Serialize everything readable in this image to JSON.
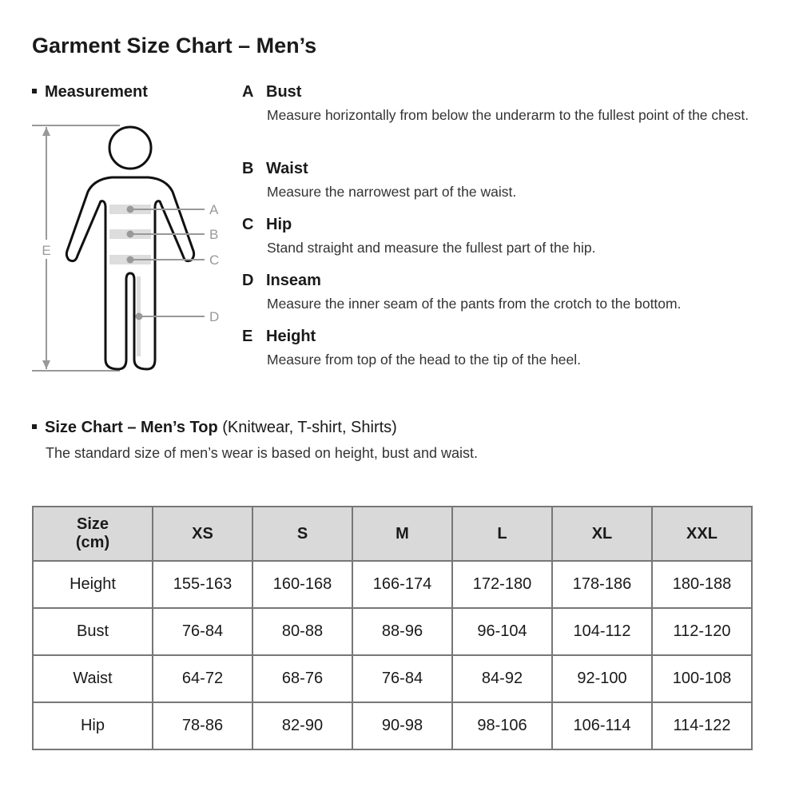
{
  "title": "Garment Size Chart – Men’s",
  "measurement": {
    "heading": "Measurement",
    "figure_labels": [
      "A",
      "B",
      "C",
      "D",
      "E"
    ],
    "items": [
      {
        "letter": "A",
        "name": "Bust",
        "desc": "Measure horizontally from below the underarm to the fullest point of the chest."
      },
      {
        "letter": "B",
        "name": "Waist",
        "desc": "Measure the narrowest part of the waist."
      },
      {
        "letter": "C",
        "name": "Hip",
        "desc": "Stand straight and measure the fullest part of the hip."
      },
      {
        "letter": "D",
        "name": "Inseam",
        "desc": "Measure the inner seam of the pants from the crotch to the bottom."
      },
      {
        "letter": "E",
        "name": "Height",
        "desc": "Measure from top of the head to the tip of the heel."
      }
    ]
  },
  "size_chart": {
    "heading": "Size Chart – Men’s Top",
    "heading_note": "(Knitwear, T-shirt, Shirts)",
    "subtitle": "The standard size of men’s wear is based on height, bust and waist.",
    "header": [
      "Size",
      "(cm)"
    ],
    "sizes": [
      "XS",
      "S",
      "M",
      "L",
      "XL",
      "XXL"
    ],
    "rows": [
      {
        "label": "Height",
        "values": [
          "155-163",
          "160-168",
          "166-174",
          "172-180",
          "178-186",
          "180-188"
        ]
      },
      {
        "label": "Bust",
        "values": [
          "76-84",
          "80-88",
          "88-96",
          "96-104",
          "104-112",
          "112-120"
        ]
      },
      {
        "label": "Waist",
        "values": [
          "64-72",
          "68-76",
          "76-84",
          "84-92",
          "92-100",
          "100-108"
        ]
      },
      {
        "label": "Hip",
        "values": [
          "78-86",
          "82-90",
          "90-98",
          "98-106",
          "106-114",
          "114-122"
        ]
      }
    ]
  }
}
